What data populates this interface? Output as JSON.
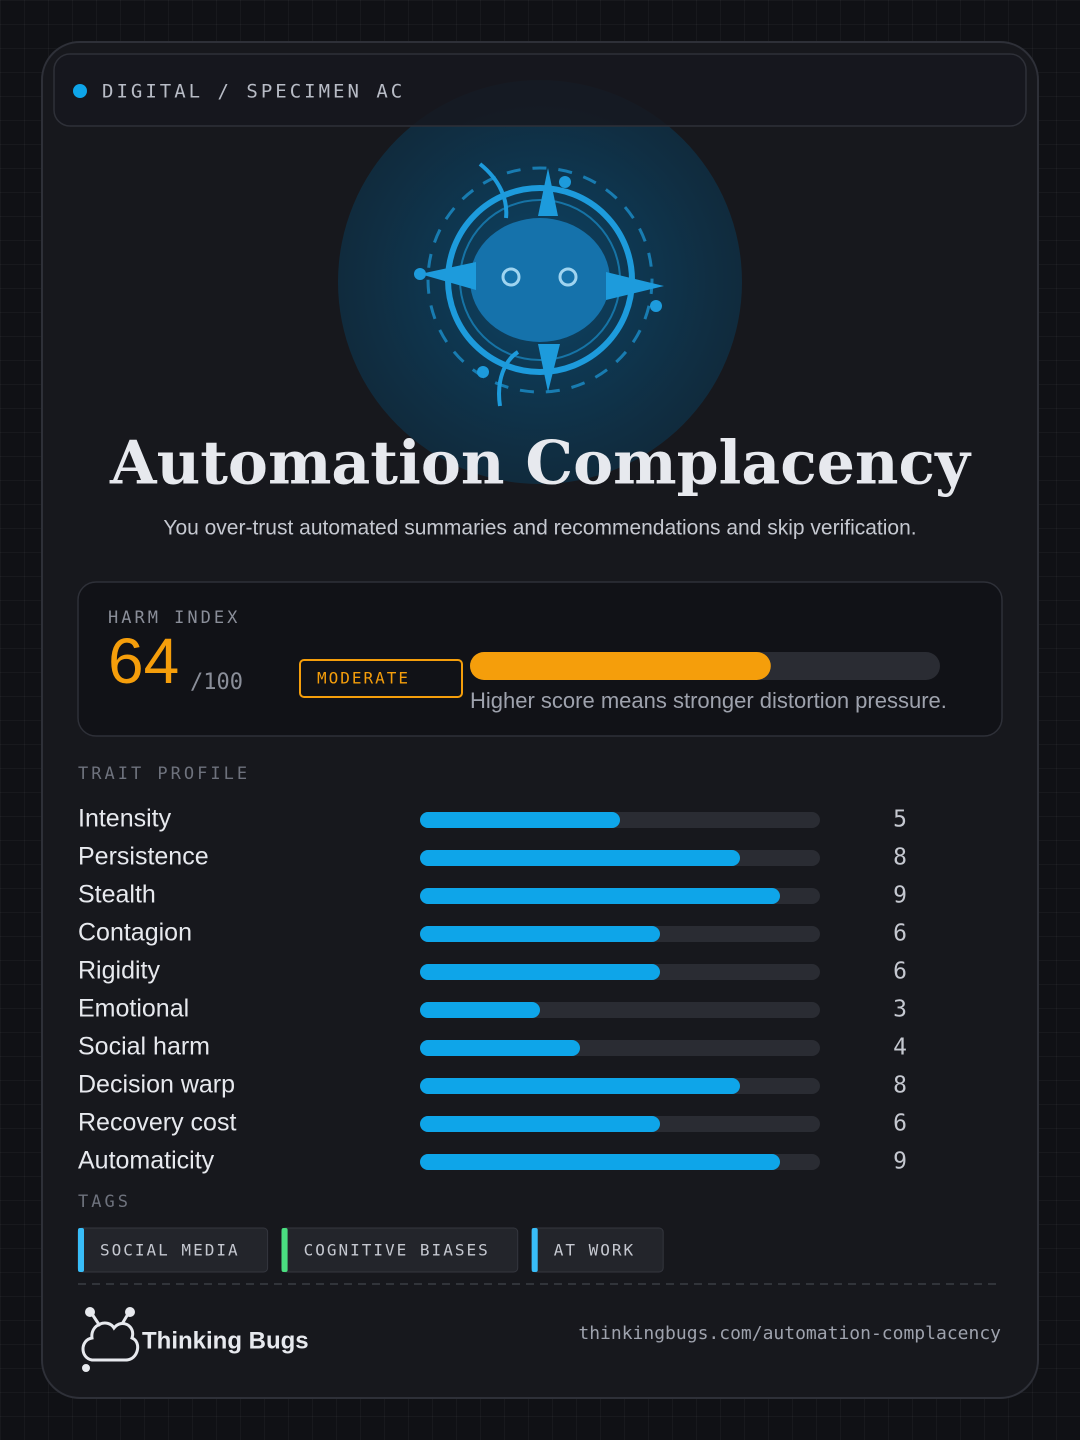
{
  "header": {
    "label": "DIGITAL / SPECIMEN AC"
  },
  "title": "Automation Complacency",
  "subtitle": "You over-trust automated summaries and recommendations and skip verification.",
  "harm": {
    "label": "HARM INDEX",
    "value": 64,
    "max": {
      "value": 100,
      "label": "/100"
    },
    "level": "MODERATE",
    "note": "Higher score means stronger distortion pressure.",
    "color": "#f59e0b"
  },
  "traits": {
    "label": "TRAIT PROFILE",
    "xlim": [
      0,
      10
    ],
    "color": "#0ea5e9",
    "items": [
      {
        "name": "Intensity",
        "value": 5
      },
      {
        "name": "Persistence",
        "value": 8
      },
      {
        "name": "Stealth",
        "value": 9
      },
      {
        "name": "Contagion",
        "value": 6
      },
      {
        "name": "Rigidity",
        "value": 6
      },
      {
        "name": "Emotional",
        "value": 3
      },
      {
        "name": "Social harm",
        "value": 4
      },
      {
        "name": "Decision warp",
        "value": 8
      },
      {
        "name": "Recovery cost",
        "value": 6
      },
      {
        "name": "Automaticity",
        "value": 9
      }
    ]
  },
  "tags": {
    "label": "TAGS",
    "items": [
      {
        "label": "SOCIAL MEDIA",
        "color": "#38bdf8"
      },
      {
        "label": "COGNITIVE BIASES",
        "color": "#4ade80"
      },
      {
        "label": "AT WORK",
        "color": "#38bdf8"
      }
    ]
  },
  "footer": {
    "brand": "Thinking Bugs",
    "url": "thinkingbugs.com/automation-complacency"
  }
}
